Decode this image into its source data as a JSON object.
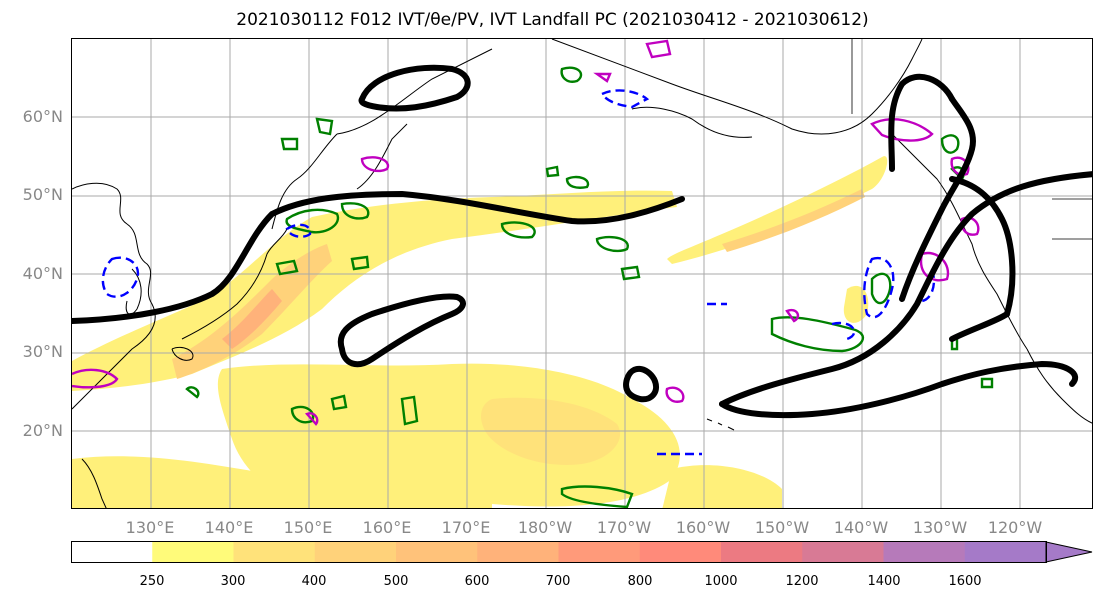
{
  "title": "2021030112 F012 IVT/θe/PV, IVT Landfall PC (2021030412 - 2021030612)",
  "map": {
    "lat_labels": [
      "60°N",
      "50°N",
      "40°N",
      "30°N",
      "20°N"
    ],
    "lon_labels": [
      "130°E",
      "140°E",
      "150°E",
      "160°E",
      "170°E",
      "180°W",
      "170°W",
      "160°W",
      "150°W",
      "140°W",
      "130°W",
      "120°W"
    ]
  },
  "colorbar": {
    "ticks": [
      "250",
      "300",
      "400",
      "500",
      "600",
      "700",
      "800",
      "1000",
      "1200",
      "1400",
      "1600"
    ],
    "colors": [
      "#ffffff",
      "#fffb7a",
      "#ffe27a",
      "#ffd27a",
      "#ffc27a",
      "#ffb27a",
      "#ff9a7a",
      "#ff8a7a",
      "#ec7a82",
      "#d87a95",
      "#b67aba",
      "#a57ac8"
    ]
  },
  "styles": {
    "green_contour": "#008000",
    "blue_contour": "#0000ff",
    "magenta_contour": "#c000c0",
    "black_contour": "#000000",
    "grid": "#aaaaaa",
    "coast": "#000000",
    "axis_label_color": "#888888"
  }
}
